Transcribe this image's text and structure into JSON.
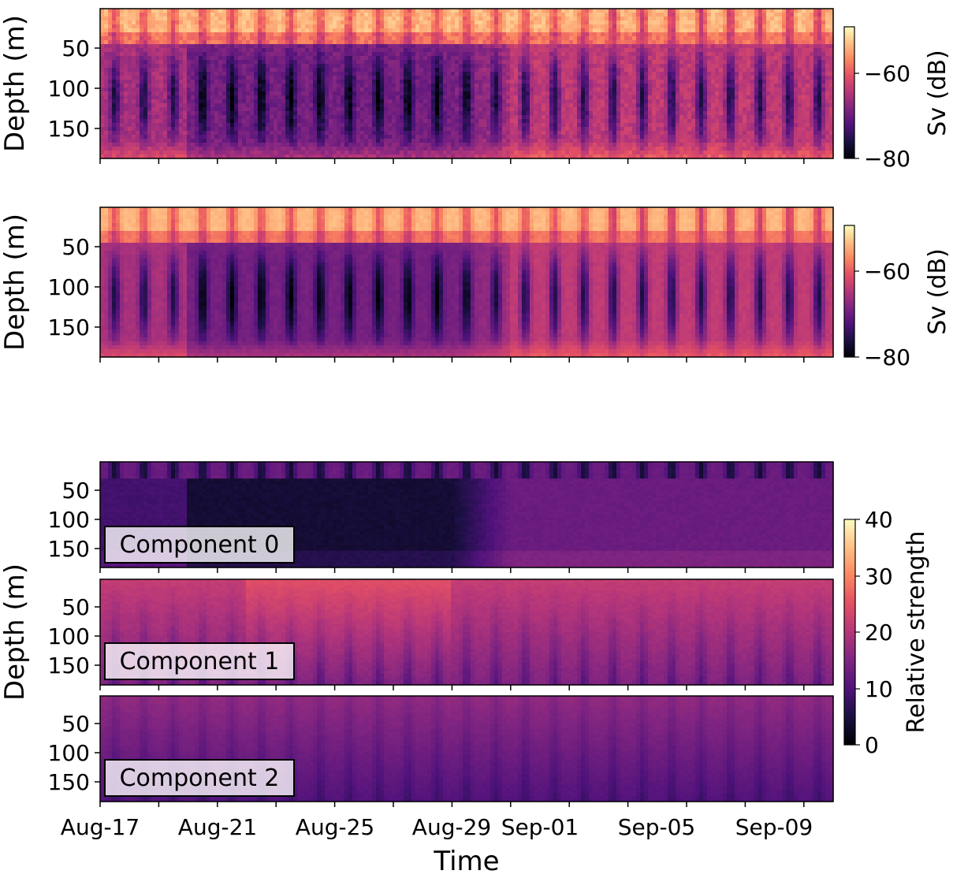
{
  "chart_data": [
    {
      "type": "heatmap",
      "panel": "top",
      "ylabel": "Depth (m)",
      "y_ticks": [
        50,
        100,
        150
      ],
      "y_range": [
        185,
        0
      ],
      "colorbar": {
        "label": "Sv (dB)",
        "ticks": [
          "−60",
          "−80"
        ],
        "range": [
          -80,
          -53
        ],
        "cmap": "magma"
      }
    },
    {
      "type": "heatmap",
      "panel": "middle",
      "ylabel": "Depth (m)",
      "y_ticks": [
        50,
        100,
        150
      ],
      "y_range": [
        185,
        0
      ],
      "colorbar": {
        "label": "Sv (dB)",
        "ticks": [
          "−60",
          "−80"
        ],
        "range": [
          -80,
          -53
        ],
        "cmap": "magma"
      }
    },
    {
      "type": "heatmap",
      "panel": "components",
      "ylabel": "Depth (m)",
      "xlabel": "Time",
      "x_ticks": [
        "Aug-17",
        "Aug-21",
        "Aug-25",
        "Aug-29",
        "Sep-01",
        "Sep-05",
        "Sep-09"
      ],
      "y_ticks": [
        50,
        100,
        150
      ],
      "components": [
        {
          "label": "Component 0"
        },
        {
          "label": "Component 1"
        },
        {
          "label": "Component 2"
        }
      ],
      "colorbar": {
        "label": "Relative strength",
        "ticks": [
          "40",
          "30",
          "20",
          "10",
          "0"
        ],
        "range": [
          0,
          40
        ],
        "cmap": "magma"
      }
    }
  ]
}
